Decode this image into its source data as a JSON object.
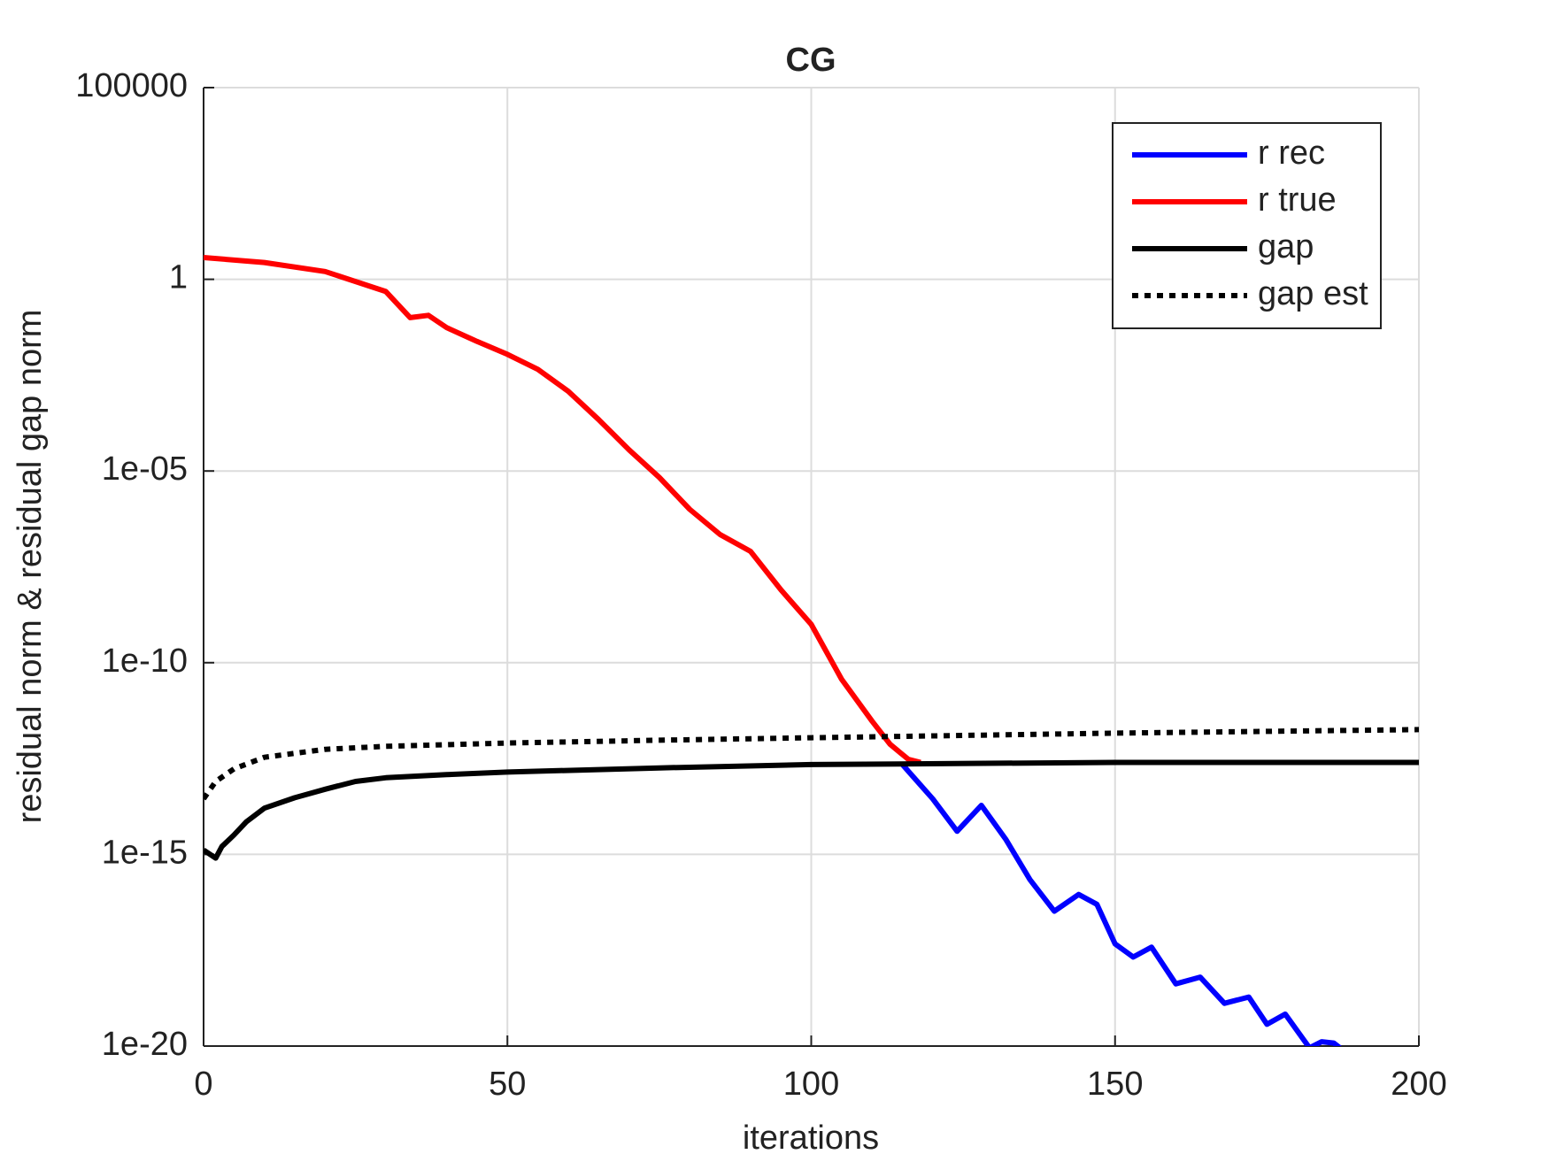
{
  "chart_data": {
    "type": "line",
    "title": "CG",
    "xlabel": "iterations",
    "ylabel": "residual norm  &  residual gap norm",
    "xlim": [
      0,
      200
    ],
    "xticks": [
      0,
      50,
      100,
      150,
      200
    ],
    "ylim": [
      1e-20,
      100000
    ],
    "ylog": true,
    "yticks": [
      {
        "value": 1e-20,
        "label": "1e-20"
      },
      {
        "value": 1e-15,
        "label": "1e-15"
      },
      {
        "value": 1e-10,
        "label": "1e-10"
      },
      {
        "value": 1e-05,
        "label": "1e-05"
      },
      1,
      100000
    ],
    "grid": true,
    "legend": "upper right",
    "series": [
      {
        "name": "r rec",
        "color": "#0000ff",
        "linestyle": "solid",
        "x": [
          115,
          120,
          124,
          128,
          132,
          136,
          140,
          144,
          147,
          150,
          153,
          156,
          160,
          164,
          168,
          172,
          175,
          178,
          182,
          184,
          186,
          187
        ],
        "values": [
          2.2e-13,
          2.8e-14,
          4e-15,
          1.9e-14,
          2.5e-15,
          2.2e-16,
          3.3e-17,
          9e-17,
          5e-17,
          4.6e-18,
          2.1e-18,
          3.8e-18,
          4.2e-19,
          6.3e-19,
          1.3e-19,
          1.9e-19,
          3.7e-20,
          6.8e-20,
          9e-21,
          1.3e-20,
          1.2e-20,
          9e-21
        ]
      },
      {
        "name": "r true",
        "color": "#ff0000",
        "linestyle": "solid",
        "x": [
          0,
          10,
          20,
          30,
          34,
          37,
          40,
          45,
          50,
          55,
          60,
          65,
          70,
          75,
          80,
          85,
          90,
          95,
          100,
          105,
          110,
          113,
          116,
          118
        ],
        "values": [
          3.7,
          2.75,
          1.6,
          0.48,
          0.1,
          0.115,
          0.055,
          0.024,
          0.011,
          0.0045,
          0.0012,
          0.00022,
          3.6e-05,
          6.8e-06,
          1e-06,
          2.2e-07,
          8e-08,
          8e-09,
          1e-09,
          3.7e-11,
          3e-12,
          7.4e-13,
          3e-13,
          2.5e-13
        ]
      },
      {
        "name": "gap",
        "color": "#000000",
        "linestyle": "solid",
        "x": [
          0,
          2,
          3,
          5,
          7,
          10,
          15,
          20,
          25,
          30,
          40,
          50,
          75,
          100,
          150,
          200
        ],
        "values": [
          1.3e-15,
          8e-16,
          1.6e-15,
          3.2e-15,
          7e-15,
          1.6e-14,
          3e-14,
          5e-14,
          8e-14,
          1e-13,
          1.2e-13,
          1.4e-13,
          1.8e-13,
          2.2e-13,
          2.5e-13,
          2.5e-13
        ]
      },
      {
        "name": "gap est",
        "color": "#000000",
        "linestyle": "dotted",
        "x": [
          0,
          2,
          5,
          10,
          20,
          30,
          50,
          75,
          100,
          150,
          200
        ],
        "values": [
          2.8e-14,
          8e-14,
          1.7e-13,
          3.4e-13,
          5.5e-13,
          6.6e-13,
          8e-13,
          9.5e-13,
          1.1e-12,
          1.45e-12,
          1.8e-12
        ]
      }
    ]
  }
}
